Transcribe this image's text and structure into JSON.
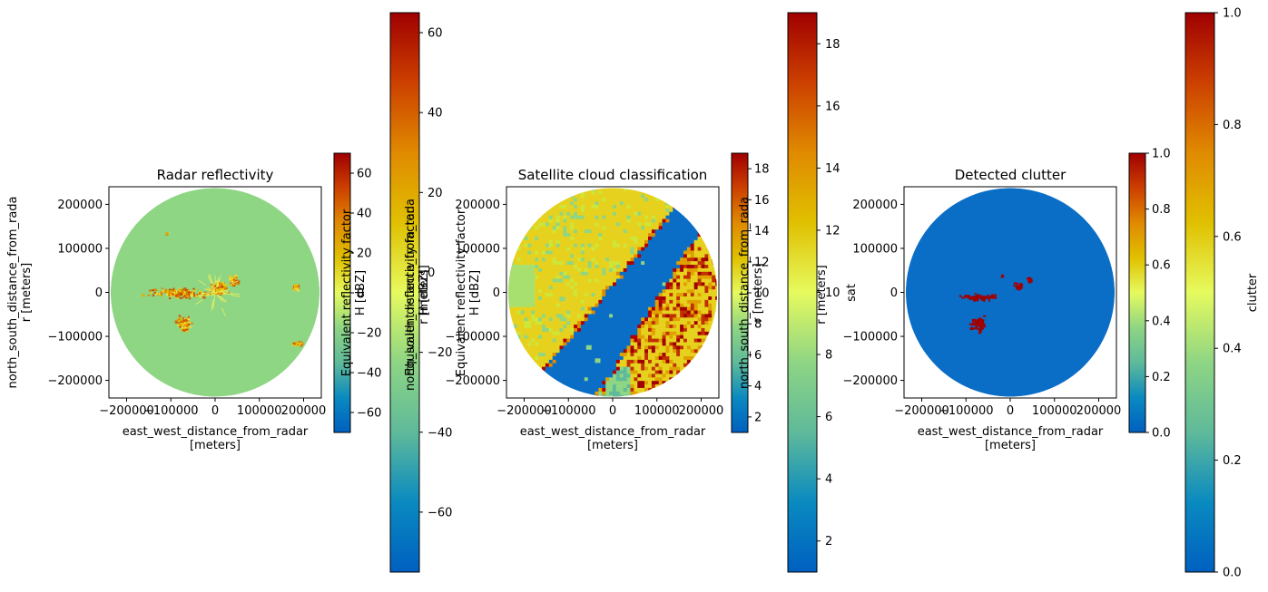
{
  "chart_data": [
    {
      "type": "heatmap",
      "title": "Radar reflectivity",
      "xlabel": [
        "east_west_distance_from_radar",
        "[meters]"
      ],
      "ylabel": [
        "north_south_distance_from_rada",
        "r [meters]"
      ],
      "xlim": [
        -240000,
        240000
      ],
      "ylim": [
        -240000,
        240000
      ],
      "x_ticks": [
        -200000,
        -100000,
        0,
        100000,
        200000
      ],
      "y_ticks": [
        -200000,
        -100000,
        0,
        100000,
        200000
      ],
      "x_tick_labels": [
        "−200000",
        "−100000",
        "0",
        "100000",
        "200000"
      ],
      "y_tick_labels": [
        "−200000",
        "−100000",
        "0",
        "100000",
        "200000"
      ],
      "background_color": "#8ed584",
      "colorbar": {
        "range": [
          -70,
          70
        ],
        "ticks": [
          -60,
          -40,
          -20,
          0,
          20,
          40,
          60
        ],
        "tick_labels": [
          "−60",
          "−40",
          "−20",
          "0",
          "20",
          "40",
          "60"
        ],
        "label": [
          "Equivalent reflectivity factor",
          "H [dBZ]"
        ]
      },
      "big_colorbar": {
        "range": [
          -75,
          65
        ],
        "ticks": [
          -60,
          -40,
          -20,
          0,
          20,
          40,
          60
        ],
        "tick_labels": [
          "−60",
          "−40",
          "−20",
          "0",
          "20",
          "40",
          "60"
        ],
        "label": [
          "north_south_distance_from_rada",
          "r [meters]"
        ]
      }
    },
    {
      "type": "heatmap",
      "title": "Satellite cloud classification",
      "xlabel": [
        "east_west_distance_from_radar",
        "[meters]"
      ],
      "ylabel": [
        "Equivalent reflectivity factor",
        "H [dBZ]"
      ],
      "xlim": [
        -240000,
        240000
      ],
      "ylim": [
        -240000,
        240000
      ],
      "x_ticks": [
        -200000,
        -100000,
        0,
        100000,
        200000
      ],
      "y_ticks": [
        -200000,
        -100000,
        0,
        100000,
        200000
      ],
      "x_tick_labels": [
        "−200000",
        "−100000",
        "0",
        "100000",
        "200000"
      ],
      "y_tick_labels": [
        "−200000",
        "−100000",
        "0",
        "100000",
        "200000"
      ],
      "colorbar": {
        "range": [
          1,
          19
        ],
        "ticks": [
          2,
          4,
          6,
          8,
          10,
          12,
          14,
          16,
          18
        ],
        "tick_labels": [
          "2",
          "4",
          "6",
          "8",
          "10",
          "12",
          "14",
          "16",
          "18"
        ],
        "label": [
          "north_south_distance_from_rada",
          "r [meters]"
        ]
      },
      "big_colorbar": {
        "range": [
          1,
          19
        ],
        "ticks": [
          2,
          4,
          6,
          8,
          10,
          12,
          14,
          16,
          18
        ],
        "tick_labels": [
          "2",
          "4",
          "6",
          "8",
          "10",
          "12",
          "14",
          "16",
          "18"
        ],
        "label": [
          "sat"
        ]
      }
    },
    {
      "type": "heatmap",
      "title": "Detected clutter",
      "xlabel": [
        "east_west_distance_from_radar",
        "[meters]"
      ],
      "ylabel": [],
      "xlim": [
        -240000,
        240000
      ],
      "ylim": [
        -240000,
        240000
      ],
      "x_ticks": [
        -200000,
        -100000,
        0,
        100000,
        200000
      ],
      "y_ticks": [
        -200000,
        -100000,
        0,
        100000,
        200000
      ],
      "x_tick_labels": [
        "−200000",
        "−100000",
        "0",
        "100000",
        "200000"
      ],
      "y_tick_labels": [
        "−200000",
        "−100000",
        "0",
        "100000",
        "200000"
      ],
      "background_color": "#0a6ec6",
      "colorbar": {
        "range": [
          0,
          1
        ],
        "ticks": [
          0,
          0.2,
          0.4,
          0.6,
          0.8,
          1.0
        ],
        "tick_labels": [
          "0.0",
          "0.2",
          "0.4",
          "0.6",
          "0.8",
          "1.0"
        ],
        "label": []
      },
      "big_colorbar": {
        "range": [
          0,
          1
        ],
        "ticks": [
          0,
          0.2,
          0.4,
          0.6,
          0.8,
          1.0
        ],
        "tick_labels": [
          "0.0",
          "0.2",
          "0.4",
          "0.6",
          "0.8",
          "1.0"
        ],
        "label": [
          "clutter"
        ]
      }
    }
  ],
  "colormap": [
    "#0060c0",
    "#0a8ac0",
    "#5fba9a",
    "#8ed584",
    "#e6fa5e",
    "#e0c000",
    "#e08a00",
    "#cc4000",
    "#a00000"
  ]
}
